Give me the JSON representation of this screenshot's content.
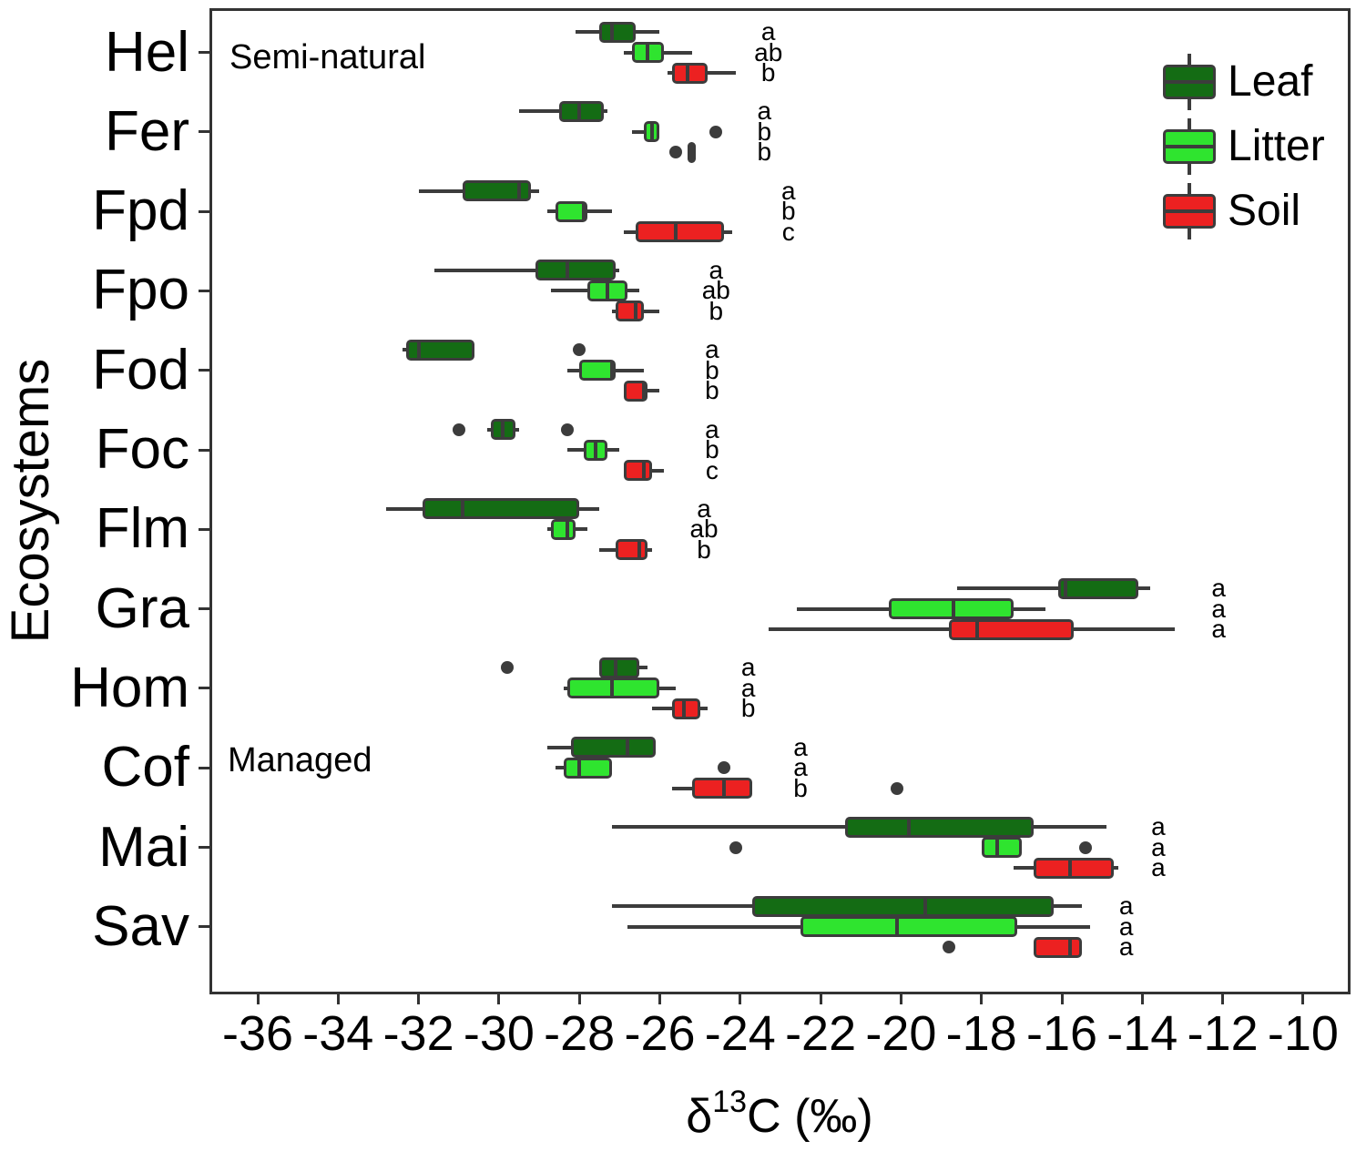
{
  "figure": {
    "ylabel": "Ecosystems",
    "xlabel": {
      "prefix": "δ",
      "sup": "13",
      "suffix": "C (‰)"
    },
    "sections": {
      "semi_natural": "Semi-natural",
      "managed": "Managed"
    }
  },
  "chart_data": {
    "type": "boxplot",
    "orientation": "horizontal",
    "title": "",
    "xlabel": "δ13C (‰)",
    "ylabel": "Ecosystems",
    "x_axis": {
      "ticks": [
        -36,
        -34,
        -32,
        -30,
        -28,
        -26,
        -24,
        -22,
        -20,
        -18,
        -16,
        -14,
        -12,
        -10
      ],
      "domain": [
        -37.2,
        -8.8
      ]
    },
    "y_axis": {
      "categories": [
        "Hel",
        "Fer",
        "Fpd",
        "Fpo",
        "Fod",
        "Foc",
        "Flm",
        "Gra",
        "Hom",
        "Cof",
        "Mai",
        "Sav"
      ]
    },
    "legend": [
      {
        "label": "Leaf",
        "color": "#146C14"
      },
      {
        "label": "Litter",
        "color": "#2FE42F"
      },
      {
        "label": "Soil",
        "color": "#EC2121"
      }
    ],
    "colors": {
      "box_border": "#3C3C3C",
      "whisker": "#3C3C3C",
      "outlier": "#3C3C3C",
      "managed_band": "#ECECEC",
      "axis": "#333333"
    },
    "sections": [
      {
        "label": "Semi-natural",
        "groups": [
          "Hel",
          "Fer",
          "Fpd",
          "Fpo",
          "Fod",
          "Foc",
          "Flm"
        ]
      },
      {
        "label": "Managed",
        "groups": [
          "Gra",
          "Hom",
          "Cof",
          "Mai",
          "Sav"
        ]
      }
    ],
    "groups": [
      {
        "label": "Hel",
        "letters": [
          "a",
          "ab",
          "b"
        ],
        "letters_x": -23.3,
        "boxes": {
          "leaf": {
            "lo": -28.1,
            "q1": -27.5,
            "med": -27.2,
            "q3": -26.6,
            "hi": -26.0,
            "outliers": []
          },
          "litter": {
            "lo": -26.9,
            "q1": -26.7,
            "med": -26.3,
            "q3": -25.9,
            "hi": -25.2,
            "outliers": []
          },
          "soil": {
            "lo": -25.8,
            "q1": -25.7,
            "med": -25.3,
            "q3": -24.8,
            "hi": -24.1,
            "outliers": []
          }
        }
      },
      {
        "label": "Fer",
        "letters": [
          "a",
          "b",
          "b"
        ],
        "letters_x": -23.4,
        "boxes": {
          "leaf": {
            "lo": -29.5,
            "q1": -28.5,
            "med": -28.0,
            "q3": -27.4,
            "hi": -27.3,
            "outliers": []
          },
          "litter": {
            "lo": -26.7,
            "q1": -26.4,
            "med": -26.2,
            "q3": -26.0,
            "hi": -26.0,
            "outliers": [
              -24.6
            ]
          },
          "soil": {
            "lo": -25.3,
            "q1": -25.3,
            "med": -25.2,
            "q3": -25.1,
            "hi": -25.1,
            "outliers": [
              -25.6
            ]
          }
        }
      },
      {
        "label": "Fpd",
        "letters": [
          "a",
          "b",
          "c"
        ],
        "letters_x": -22.8,
        "boxes": {
          "leaf": {
            "lo": -32.0,
            "q1": -30.9,
            "med": -29.5,
            "q3": -29.2,
            "hi": -29.0,
            "outliers": []
          },
          "litter": {
            "lo": -28.8,
            "q1": -28.6,
            "med": -27.9,
            "q3": -27.8,
            "hi": -27.2,
            "outliers": []
          },
          "soil": {
            "lo": -26.9,
            "q1": -26.6,
            "med": -25.6,
            "q3": -24.4,
            "hi": -24.2,
            "outliers": []
          }
        }
      },
      {
        "label": "Fpo",
        "letters": [
          "a",
          "ab",
          "b"
        ],
        "letters_x": -24.6,
        "boxes": {
          "leaf": {
            "lo": -31.6,
            "q1": -29.1,
            "med": -28.3,
            "q3": -27.1,
            "hi": -27.0,
            "outliers": []
          },
          "litter": {
            "lo": -28.7,
            "q1": -27.8,
            "med": -27.3,
            "q3": -26.8,
            "hi": -26.5,
            "outliers": []
          },
          "soil": {
            "lo": -27.2,
            "q1": -27.1,
            "med": -26.6,
            "q3": -26.4,
            "hi": -26.0,
            "outliers": []
          }
        }
      },
      {
        "label": "Fod",
        "letters": [
          "a",
          "b",
          "b"
        ],
        "letters_x": -24.7,
        "boxes": {
          "leaf": {
            "lo": -32.4,
            "q1": -32.3,
            "med": -32.0,
            "q3": -30.6,
            "hi": -30.6,
            "outliers": [
              -28.0
            ]
          },
          "litter": {
            "lo": -28.3,
            "q1": -28.0,
            "med": -27.2,
            "q3": -27.1,
            "hi": -26.4,
            "outliers": []
          },
          "soil": {
            "lo": -26.9,
            "q1": -26.9,
            "med": -26.4,
            "q3": -26.3,
            "hi": -26.0,
            "outliers": []
          }
        }
      },
      {
        "label": "Foc",
        "letters": [
          "a",
          "b",
          "c"
        ],
        "letters_x": -24.7,
        "boxes": {
          "leaf": {
            "lo": -30.3,
            "q1": -30.2,
            "med": -29.9,
            "q3": -29.6,
            "hi": -29.5,
            "outliers": [
              -31.0,
              -28.3
            ]
          },
          "litter": {
            "lo": -28.3,
            "q1": -27.9,
            "med": -27.6,
            "q3": -27.3,
            "hi": -27.0,
            "outliers": []
          },
          "soil": {
            "lo": -26.9,
            "q1": -26.9,
            "med": -26.4,
            "q3": -26.2,
            "hi": -25.9,
            "outliers": []
          }
        }
      },
      {
        "label": "Flm",
        "letters": [
          "a",
          "ab",
          "b"
        ],
        "letters_x": -24.9,
        "boxes": {
          "leaf": {
            "lo": -32.8,
            "q1": -31.9,
            "med": -30.9,
            "q3": -28.0,
            "hi": -27.5,
            "outliers": []
          },
          "litter": {
            "lo": -28.8,
            "q1": -28.7,
            "med": -28.3,
            "q3": -28.1,
            "hi": -27.8,
            "outliers": []
          },
          "soil": {
            "lo": -27.5,
            "q1": -27.1,
            "med": -26.5,
            "q3": -26.3,
            "hi": -26.2,
            "outliers": []
          }
        }
      },
      {
        "label": "Gra",
        "letters": [
          "a",
          "a",
          "a"
        ],
        "letters_x": -12.1,
        "boxes": {
          "leaf": {
            "lo": -18.6,
            "q1": -16.1,
            "med": -15.9,
            "q3": -14.1,
            "hi": -13.8,
            "outliers": []
          },
          "litter": {
            "lo": -22.6,
            "q1": -20.3,
            "med": -18.7,
            "q3": -17.2,
            "hi": -16.4,
            "outliers": []
          },
          "soil": {
            "lo": -23.3,
            "q1": -18.8,
            "med": -18.1,
            "q3": -15.7,
            "hi": -13.2,
            "outliers": []
          }
        }
      },
      {
        "label": "Hom",
        "letters": [
          "a",
          "a",
          "b"
        ],
        "letters_x": -23.8,
        "boxes": {
          "leaf": {
            "lo": -27.5,
            "q1": -27.5,
            "med": -27.1,
            "q3": -26.5,
            "hi": -26.3,
            "outliers": [
              -29.8
            ]
          },
          "litter": {
            "lo": -28.4,
            "q1": -28.3,
            "med": -27.2,
            "q3": -26.0,
            "hi": -25.6,
            "outliers": []
          },
          "soil": {
            "lo": -26.2,
            "q1": -25.7,
            "med": -25.4,
            "q3": -25.0,
            "hi": -24.8,
            "outliers": []
          }
        }
      },
      {
        "label": "Cof",
        "letters": [
          "a",
          "a",
          "b"
        ],
        "letters_x": -22.5,
        "boxes": {
          "leaf": {
            "lo": -28.8,
            "q1": -28.2,
            "med": -26.8,
            "q3": -26.1,
            "hi": -26.1,
            "outliers": []
          },
          "litter": {
            "lo": -28.6,
            "q1": -28.4,
            "med": -28.0,
            "q3": -27.2,
            "hi": -27.2,
            "outliers": [
              -24.4
            ]
          },
          "soil": {
            "lo": -25.7,
            "q1": -25.2,
            "med": -24.4,
            "q3": -23.7,
            "hi": -23.7,
            "outliers": [
              -20.1
            ]
          }
        }
      },
      {
        "label": "Mai",
        "letters": [
          "a",
          "a",
          "a"
        ],
        "letters_x": -13.6,
        "boxes": {
          "leaf": {
            "lo": -27.2,
            "q1": -21.4,
            "med": -19.8,
            "q3": -16.7,
            "hi": -14.9,
            "outliers": []
          },
          "litter": {
            "lo": -18.0,
            "q1": -18.0,
            "med": -17.6,
            "q3": -17.0,
            "hi": -17.0,
            "outliers": [
              -24.1,
              -15.4
            ]
          },
          "soil": {
            "lo": -17.2,
            "q1": -16.7,
            "med": -15.8,
            "q3": -14.7,
            "hi": -14.6,
            "outliers": []
          }
        }
      },
      {
        "label": "Sav",
        "letters": [
          "a",
          "a",
          "a"
        ],
        "letters_x": -14.4,
        "boxes": {
          "leaf": {
            "lo": -27.2,
            "q1": -23.7,
            "med": -19.4,
            "q3": -16.2,
            "hi": -15.5,
            "outliers": []
          },
          "litter": {
            "lo": -26.8,
            "q1": -22.5,
            "med": -20.1,
            "q3": -17.1,
            "hi": -15.3,
            "outliers": []
          },
          "soil": {
            "lo": -16.7,
            "q1": -16.7,
            "med": -15.8,
            "q3": -15.5,
            "hi": -15.5,
            "outliers": [
              -18.8
            ]
          }
        }
      }
    ]
  }
}
